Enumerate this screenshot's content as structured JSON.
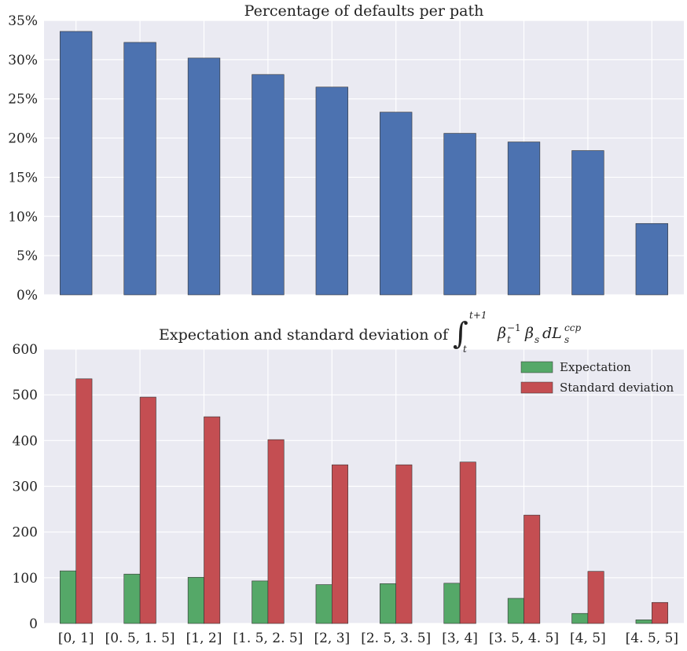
{
  "chart_data": [
    {
      "type": "bar",
      "title": "Percentage of defaults per path",
      "xlabel": "",
      "ylabel": "",
      "ylim": [
        0,
        35
      ],
      "yticks": [
        "0%",
        "5%",
        "10%",
        "15%",
        "20%",
        "25%",
        "30%",
        "35%"
      ],
      "categories": [
        "[0, 1]",
        "[0. 5, 1. 5]",
        "[1, 2]",
        "[1. 5, 2. 5]",
        "[2, 3]",
        "[2. 5, 3. 5]",
        "[3, 4]",
        "[3. 5, 4. 5]",
        "[4, 5]",
        "[4. 5, 5]"
      ],
      "values": [
        33.6,
        32.2,
        30.2,
        28.1,
        26.5,
        23.3,
        20.6,
        19.5,
        18.4,
        9.1
      ],
      "grid": true,
      "colors": {
        "bar": "#4c72b0",
        "background": "#eaeaf2",
        "grid": "#ffffff"
      }
    },
    {
      "type": "bar",
      "title": "Expectation and standard deviation of",
      "title_math": {
        "integral": "∫",
        "upper": "t+1",
        "lower": "t",
        "integrand": "β",
        "beta_sub": "t",
        "beta_sup": "−1",
        "beta2": "β",
        "beta2_sub": "s",
        "d": "dL",
        "L_sub": "s",
        "L_sup": "ccp"
      },
      "xlabel": "",
      "ylabel": "",
      "ylim": [
        0,
        600
      ],
      "yticks": [
        "0",
        "100",
        "200",
        "300",
        "400",
        "500",
        "600"
      ],
      "categories": [
        "[0, 1]",
        "[0. 5, 1. 5]",
        "[1, 2]",
        "[1. 5, 2. 5]",
        "[2, 3]",
        "[2. 5, 3. 5]",
        "[3, 4]",
        "[3. 5, 4. 5]",
        "[4, 5]",
        "[4. 5, 5]"
      ],
      "series": [
        {
          "name": "Expectation",
          "color": "#55a868",
          "values": [
            115,
            108,
            101,
            93,
            85,
            87,
            88,
            55,
            22,
            8
          ]
        },
        {
          "name": "Standard deviation",
          "color": "#c44e52",
          "values": [
            535,
            495,
            452,
            402,
            347,
            347,
            353,
            237,
            114,
            46
          ]
        }
      ],
      "legend": "top-right",
      "grid": true,
      "colors": {
        "background": "#eaeaf2",
        "grid": "#ffffff"
      }
    }
  ]
}
